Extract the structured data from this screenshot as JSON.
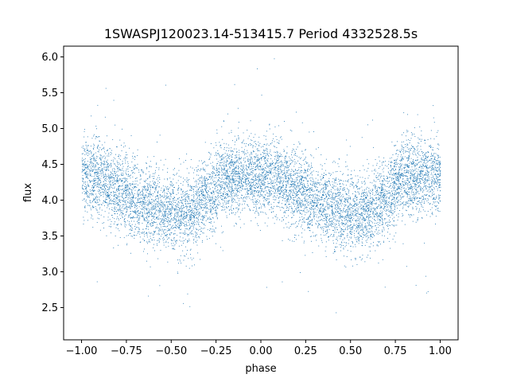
{
  "chart_data": {
    "type": "scatter",
    "title": "1SWASPJ120023.14-513415.7 Period 4332528.5s",
    "xlabel": "phase",
    "ylabel": "flux",
    "xlim": [
      -1.1,
      1.1
    ],
    "ylim": [
      2.05,
      6.15
    ],
    "xticks": [
      -1.0,
      -0.75,
      -0.5,
      -0.25,
      0.0,
      0.25,
      0.5,
      0.75,
      1.0
    ],
    "xtick_labels": [
      "−1.00",
      "−0.75",
      "−0.50",
      "−0.25",
      "0.00",
      "0.25",
      "0.50",
      "0.75",
      "1.00"
    ],
    "yticks": [
      2.5,
      3.0,
      3.5,
      4.0,
      4.5,
      5.0,
      5.5,
      6.0
    ],
    "ytick_labels": [
      "2.5",
      "3.0",
      "3.5",
      "4.0",
      "4.5",
      "5.0",
      "5.5",
      "6.0"
    ],
    "grid": false,
    "legend": "none",
    "point_color": "#1f77b4",
    "phase_coverage": [
      -1.0,
      1.0
    ],
    "trend": {
      "phase": [
        -1.0,
        -0.9,
        -0.8,
        -0.7,
        -0.6,
        -0.5,
        -0.4,
        -0.3,
        -0.2,
        -0.1,
        0.0,
        0.1,
        0.2,
        0.3,
        0.4,
        0.5,
        0.6,
        0.7,
        0.8,
        0.9,
        1.0
      ],
      "flux": [
        4.35,
        4.3,
        4.15,
        4.0,
        3.9,
        3.8,
        3.85,
        4.05,
        4.3,
        4.35,
        4.35,
        4.3,
        4.15,
        4.0,
        3.9,
        3.8,
        3.85,
        4.05,
        4.3,
        4.35,
        4.35
      ]
    }
  }
}
